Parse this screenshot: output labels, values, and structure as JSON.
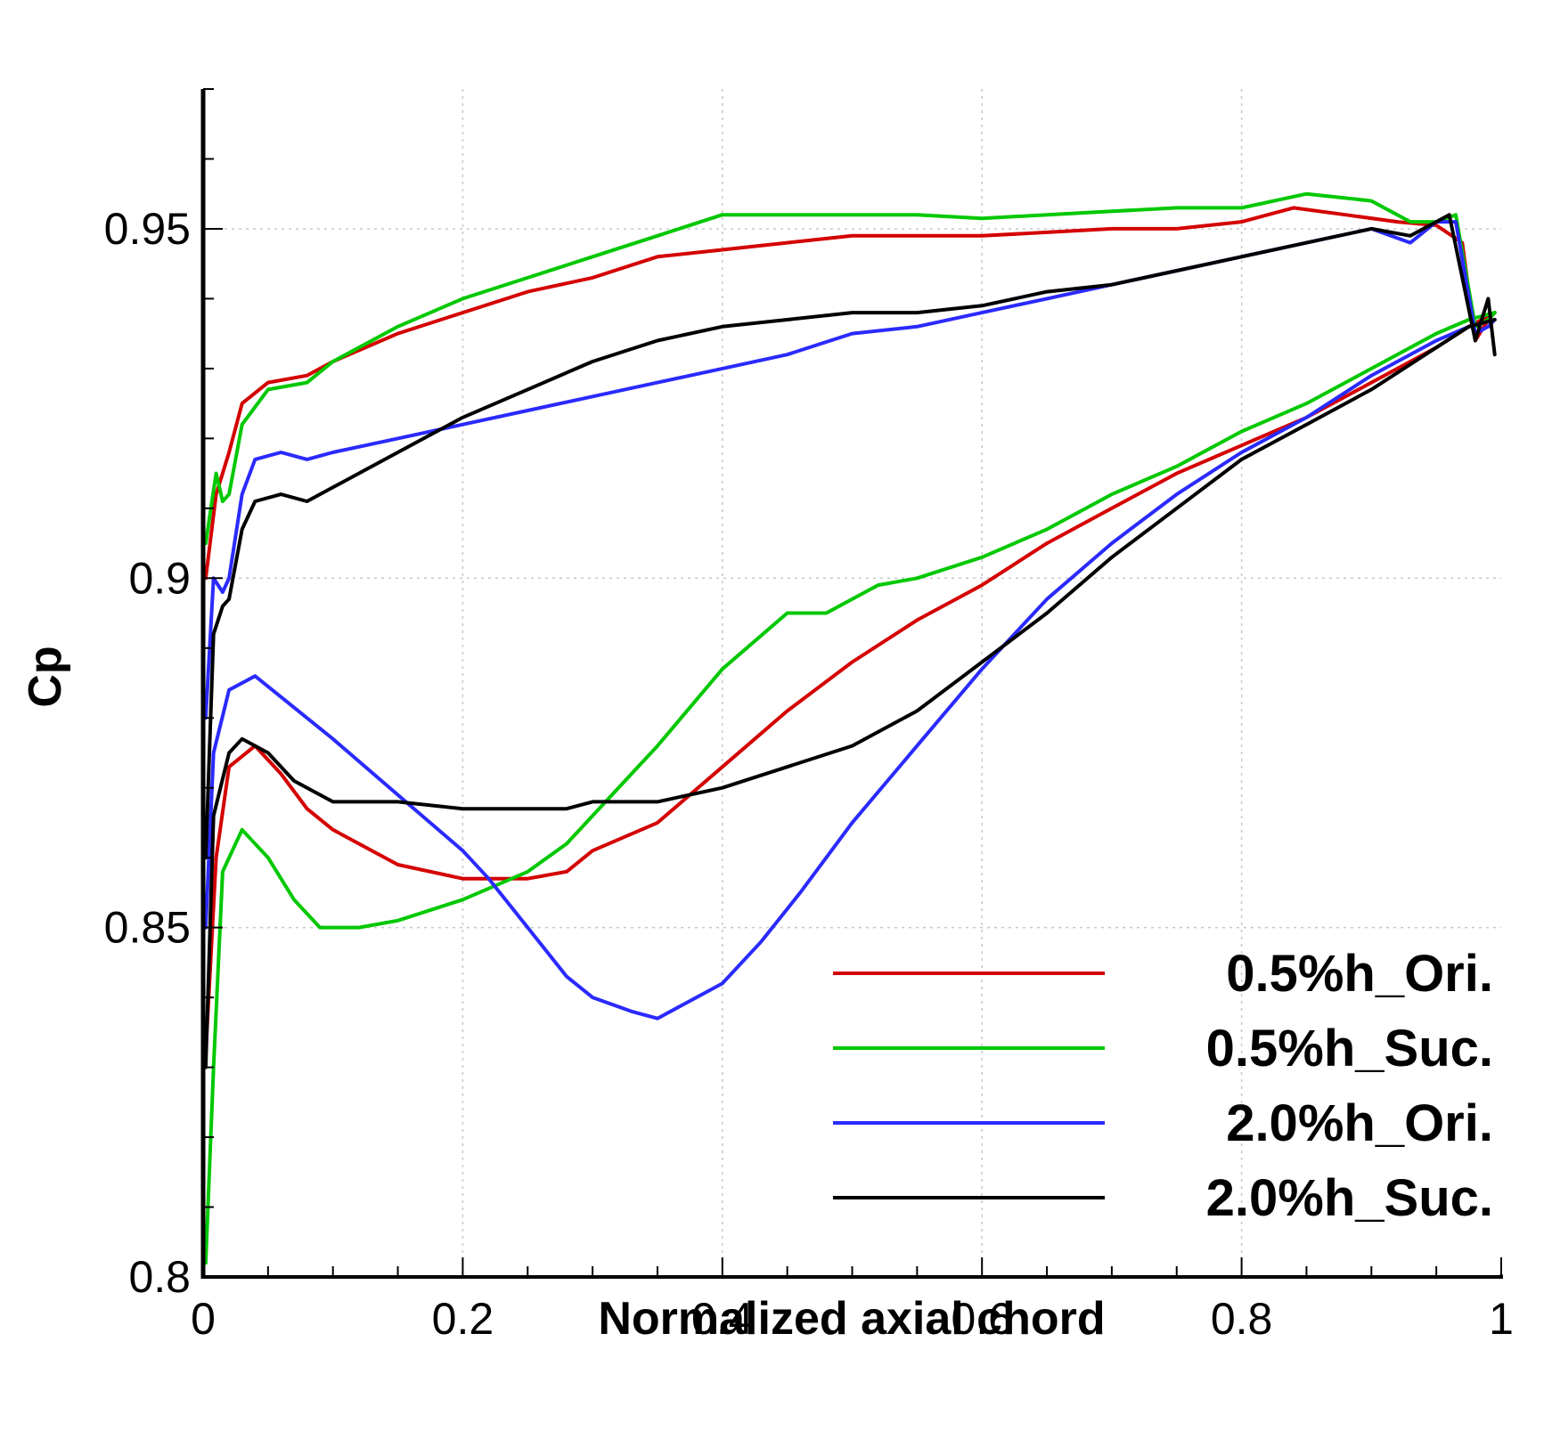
{
  "chart_data": {
    "type": "line",
    "title": "",
    "xlabel": "Normalized axial chord",
    "ylabel": "Cp",
    "xlim": [
      0,
      1
    ],
    "ylim": [
      0.8,
      0.97
    ],
    "xticks": [
      0,
      0.2,
      0.4,
      0.6,
      0.8,
      1
    ],
    "xtick_labels": [
      "0",
      "0.2",
      "0.4",
      "0.6",
      "0.8",
      "1"
    ],
    "yticks": [
      0.8,
      0.85,
      0.9,
      0.95
    ],
    "ytick_labels": [
      "0.8",
      "0.85",
      "0.9",
      "0.95"
    ],
    "grid": true,
    "legend_position": "bottom-right",
    "series": [
      {
        "name": "0.5%h_Ori.",
        "color": "#d40000",
        "upper": [
          [
            0.002,
            0.9
          ],
          [
            0.01,
            0.912
          ],
          [
            0.02,
            0.918
          ],
          [
            0.03,
            0.925
          ],
          [
            0.05,
            0.928
          ],
          [
            0.08,
            0.929
          ],
          [
            0.1,
            0.931
          ],
          [
            0.15,
            0.935
          ],
          [
            0.2,
            0.938
          ],
          [
            0.25,
            0.941
          ],
          [
            0.3,
            0.943
          ],
          [
            0.35,
            0.946
          ],
          [
            0.4,
            0.947
          ],
          [
            0.45,
            0.948
          ],
          [
            0.5,
            0.949
          ],
          [
            0.55,
            0.949
          ],
          [
            0.6,
            0.949
          ],
          [
            0.65,
            0.9495
          ],
          [
            0.7,
            0.95
          ],
          [
            0.75,
            0.95
          ],
          [
            0.8,
            0.951
          ],
          [
            0.84,
            0.953
          ],
          [
            0.88,
            0.952
          ],
          [
            0.92,
            0.951
          ],
          [
            0.95,
            0.9505
          ],
          [
            0.97,
            0.948
          ],
          [
            0.98,
            0.934
          ],
          [
            0.99,
            0.937
          ],
          [
            0.995,
            0.938
          ]
        ],
        "lower": [
          [
            0.002,
            0.832
          ],
          [
            0.01,
            0.86
          ],
          [
            0.02,
            0.873
          ],
          [
            0.04,
            0.876
          ],
          [
            0.06,
            0.872
          ],
          [
            0.08,
            0.867
          ],
          [
            0.1,
            0.864
          ],
          [
            0.15,
            0.859
          ],
          [
            0.2,
            0.857
          ],
          [
            0.25,
            0.857
          ],
          [
            0.28,
            0.858
          ],
          [
            0.3,
            0.861
          ],
          [
            0.35,
            0.865
          ],
          [
            0.4,
            0.873
          ],
          [
            0.45,
            0.881
          ],
          [
            0.5,
            0.888
          ],
          [
            0.55,
            0.894
          ],
          [
            0.6,
            0.899
          ],
          [
            0.65,
            0.905
          ],
          [
            0.7,
            0.91
          ],
          [
            0.75,
            0.915
          ],
          [
            0.8,
            0.919
          ],
          [
            0.85,
            0.923
          ],
          [
            0.9,
            0.928
          ],
          [
            0.95,
            0.933
          ],
          [
            0.975,
            0.936
          ],
          [
            0.995,
            0.938
          ]
        ]
      },
      {
        "name": "0.5%h_Suc.",
        "color": "#00c800",
        "upper": [
          [
            0.002,
            0.905
          ],
          [
            0.01,
            0.915
          ],
          [
            0.015,
            0.911
          ],
          [
            0.02,
            0.912
          ],
          [
            0.03,
            0.922
          ],
          [
            0.05,
            0.927
          ],
          [
            0.08,
            0.928
          ],
          [
            0.1,
            0.931
          ],
          [
            0.15,
            0.936
          ],
          [
            0.2,
            0.94
          ],
          [
            0.25,
            0.943
          ],
          [
            0.3,
            0.946
          ],
          [
            0.35,
            0.949
          ],
          [
            0.4,
            0.952
          ],
          [
            0.45,
            0.952
          ],
          [
            0.5,
            0.952
          ],
          [
            0.55,
            0.952
          ],
          [
            0.6,
            0.9515
          ],
          [
            0.65,
            0.952
          ],
          [
            0.7,
            0.9525
          ],
          [
            0.75,
            0.953
          ],
          [
            0.8,
            0.953
          ],
          [
            0.85,
            0.955
          ],
          [
            0.9,
            0.954
          ],
          [
            0.93,
            0.951
          ],
          [
            0.95,
            0.951
          ],
          [
            0.965,
            0.952
          ],
          [
            0.98,
            0.936
          ],
          [
            0.99,
            0.937
          ],
          [
            0.995,
            0.938
          ]
        ],
        "lower": [
          [
            0.002,
            0.802
          ],
          [
            0.008,
            0.83
          ],
          [
            0.015,
            0.858
          ],
          [
            0.03,
            0.864
          ],
          [
            0.05,
            0.86
          ],
          [
            0.07,
            0.854
          ],
          [
            0.09,
            0.85
          ],
          [
            0.12,
            0.85
          ],
          [
            0.15,
            0.851
          ],
          [
            0.2,
            0.854
          ],
          [
            0.25,
            0.858
          ],
          [
            0.28,
            0.862
          ],
          [
            0.3,
            0.866
          ],
          [
            0.35,
            0.876
          ],
          [
            0.4,
            0.887
          ],
          [
            0.45,
            0.895
          ],
          [
            0.48,
            0.895
          ],
          [
            0.52,
            0.899
          ],
          [
            0.55,
            0.9
          ],
          [
            0.6,
            0.903
          ],
          [
            0.65,
            0.907
          ],
          [
            0.7,
            0.912
          ],
          [
            0.75,
            0.916
          ],
          [
            0.8,
            0.921
          ],
          [
            0.85,
            0.925
          ],
          [
            0.9,
            0.93
          ],
          [
            0.95,
            0.935
          ],
          [
            0.975,
            0.937
          ],
          [
            0.995,
            0.938
          ]
        ]
      },
      {
        "name": "2.0%h_Ori.",
        "color": "#2a2aff",
        "upper": [
          [
            0.002,
            0.88
          ],
          [
            0.008,
            0.9
          ],
          [
            0.015,
            0.898
          ],
          [
            0.02,
            0.9
          ],
          [
            0.03,
            0.912
          ],
          [
            0.04,
            0.917
          ],
          [
            0.06,
            0.918
          ],
          [
            0.08,
            0.917
          ],
          [
            0.1,
            0.918
          ],
          [
            0.15,
            0.92
          ],
          [
            0.2,
            0.922
          ],
          [
            0.25,
            0.924
          ],
          [
            0.3,
            0.926
          ],
          [
            0.35,
            0.928
          ],
          [
            0.4,
            0.93
          ],
          [
            0.45,
            0.932
          ],
          [
            0.5,
            0.935
          ],
          [
            0.55,
            0.936
          ],
          [
            0.6,
            0.938
          ],
          [
            0.65,
            0.94
          ],
          [
            0.7,
            0.942
          ],
          [
            0.75,
            0.944
          ],
          [
            0.8,
            0.946
          ],
          [
            0.85,
            0.948
          ],
          [
            0.9,
            0.95
          ],
          [
            0.93,
            0.948
          ],
          [
            0.95,
            0.951
          ],
          [
            0.965,
            0.951
          ],
          [
            0.98,
            0.935
          ],
          [
            0.99,
            0.936
          ],
          [
            0.995,
            0.937
          ]
        ],
        "lower": [
          [
            0.002,
            0.85
          ],
          [
            0.008,
            0.875
          ],
          [
            0.02,
            0.884
          ],
          [
            0.04,
            0.886
          ],
          [
            0.06,
            0.883
          ],
          [
            0.1,
            0.877
          ],
          [
            0.15,
            0.869
          ],
          [
            0.2,
            0.861
          ],
          [
            0.22,
            0.857
          ],
          [
            0.25,
            0.85
          ],
          [
            0.28,
            0.843
          ],
          [
            0.3,
            0.84
          ],
          [
            0.33,
            0.838
          ],
          [
            0.35,
            0.837
          ],
          [
            0.38,
            0.84
          ],
          [
            0.4,
            0.842
          ],
          [
            0.43,
            0.848
          ],
          [
            0.46,
            0.855
          ],
          [
            0.5,
            0.865
          ],
          [
            0.55,
            0.876
          ],
          [
            0.6,
            0.887
          ],
          [
            0.65,
            0.897
          ],
          [
            0.7,
            0.905
          ],
          [
            0.75,
            0.912
          ],
          [
            0.8,
            0.918
          ],
          [
            0.85,
            0.923
          ],
          [
            0.9,
            0.929
          ],
          [
            0.95,
            0.934
          ],
          [
            0.975,
            0.936
          ],
          [
            0.995,
            0.937
          ]
        ]
      },
      {
        "name": "2.0%h_Suc.",
        "color": "#000000",
        "upper": [
          [
            0.002,
            0.86
          ],
          [
            0.008,
            0.892
          ],
          [
            0.015,
            0.896
          ],
          [
            0.02,
            0.897
          ],
          [
            0.03,
            0.907
          ],
          [
            0.04,
            0.911
          ],
          [
            0.06,
            0.912
          ],
          [
            0.08,
            0.911
          ],
          [
            0.1,
            0.913
          ],
          [
            0.15,
            0.918
          ],
          [
            0.2,
            0.923
          ],
          [
            0.25,
            0.927
          ],
          [
            0.3,
            0.931
          ],
          [
            0.35,
            0.934
          ],
          [
            0.4,
            0.936
          ],
          [
            0.45,
            0.937
          ],
          [
            0.5,
            0.938
          ],
          [
            0.55,
            0.938
          ],
          [
            0.6,
            0.939
          ],
          [
            0.65,
            0.941
          ],
          [
            0.7,
            0.942
          ],
          [
            0.75,
            0.944
          ],
          [
            0.8,
            0.946
          ],
          [
            0.85,
            0.948
          ],
          [
            0.9,
            0.95
          ],
          [
            0.93,
            0.949
          ],
          [
            0.96,
            0.952
          ],
          [
            0.98,
            0.934
          ],
          [
            0.99,
            0.94
          ],
          [
            0.995,
            0.932
          ]
        ],
        "lower": [
          [
            0.002,
            0.83
          ],
          [
            0.008,
            0.866
          ],
          [
            0.02,
            0.875
          ],
          [
            0.03,
            0.877
          ],
          [
            0.05,
            0.875
          ],
          [
            0.07,
            0.871
          ],
          [
            0.1,
            0.868
          ],
          [
            0.15,
            0.868
          ],
          [
            0.2,
            0.867
          ],
          [
            0.25,
            0.867
          ],
          [
            0.28,
            0.867
          ],
          [
            0.3,
            0.868
          ],
          [
            0.35,
            0.868
          ],
          [
            0.4,
            0.87
          ],
          [
            0.45,
            0.873
          ],
          [
            0.5,
            0.876
          ],
          [
            0.55,
            0.881
          ],
          [
            0.6,
            0.888
          ],
          [
            0.65,
            0.895
          ],
          [
            0.7,
            0.903
          ],
          [
            0.75,
            0.91
          ],
          [
            0.8,
            0.917
          ],
          [
            0.85,
            0.922
          ],
          [
            0.9,
            0.927
          ],
          [
            0.95,
            0.933
          ],
          [
            0.975,
            0.936
          ],
          [
            0.995,
            0.937
          ]
        ]
      }
    ]
  }
}
